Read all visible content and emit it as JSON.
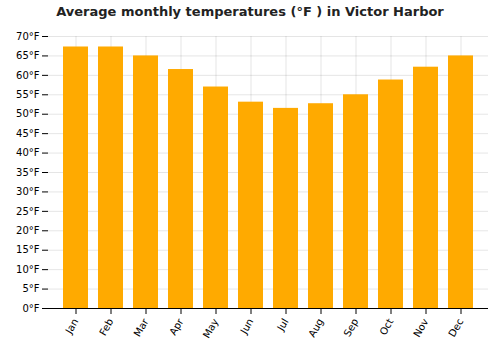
{
  "chart_data": {
    "type": "bar",
    "title": "Average monthly temperatures (°F ) in Victor Harbor",
    "categories": [
      "Jan",
      "Feb",
      "Mar",
      "Apr",
      "May",
      "Jun",
      "Jul",
      "Aug",
      "Sep",
      "Oct",
      "Nov",
      "Dec"
    ],
    "values": [
      67.3,
      67.3,
      65.0,
      61.5,
      57.0,
      53.1,
      51.5,
      52.7,
      55.0,
      58.8,
      62.1,
      65.0
    ],
    "color": "#FFAA00",
    "ylim": [
      0,
      70
    ],
    "yticks": [
      {
        "value": 0,
        "label": "0°F"
      },
      {
        "value": 5,
        "label": "5°F"
      },
      {
        "value": 10,
        "label": "10°F"
      },
      {
        "value": 15,
        "label": "15°F"
      },
      {
        "value": 20,
        "label": "20°F"
      },
      {
        "value": 25,
        "label": "25°F"
      },
      {
        "value": 30,
        "label": "30°F"
      },
      {
        "value": 35,
        "label": "35°F"
      },
      {
        "value": 40,
        "label": "40°F"
      },
      {
        "value": 45,
        "label": "45°F"
      },
      {
        "value": 50,
        "label": "50°F"
      },
      {
        "value": 55,
        "label": "55°F"
      },
      {
        "value": 60,
        "label": "60°F"
      },
      {
        "value": 65,
        "label": "65°F"
      },
      {
        "value": 70,
        "label": "70°F"
      }
    ],
    "grid": true
  }
}
